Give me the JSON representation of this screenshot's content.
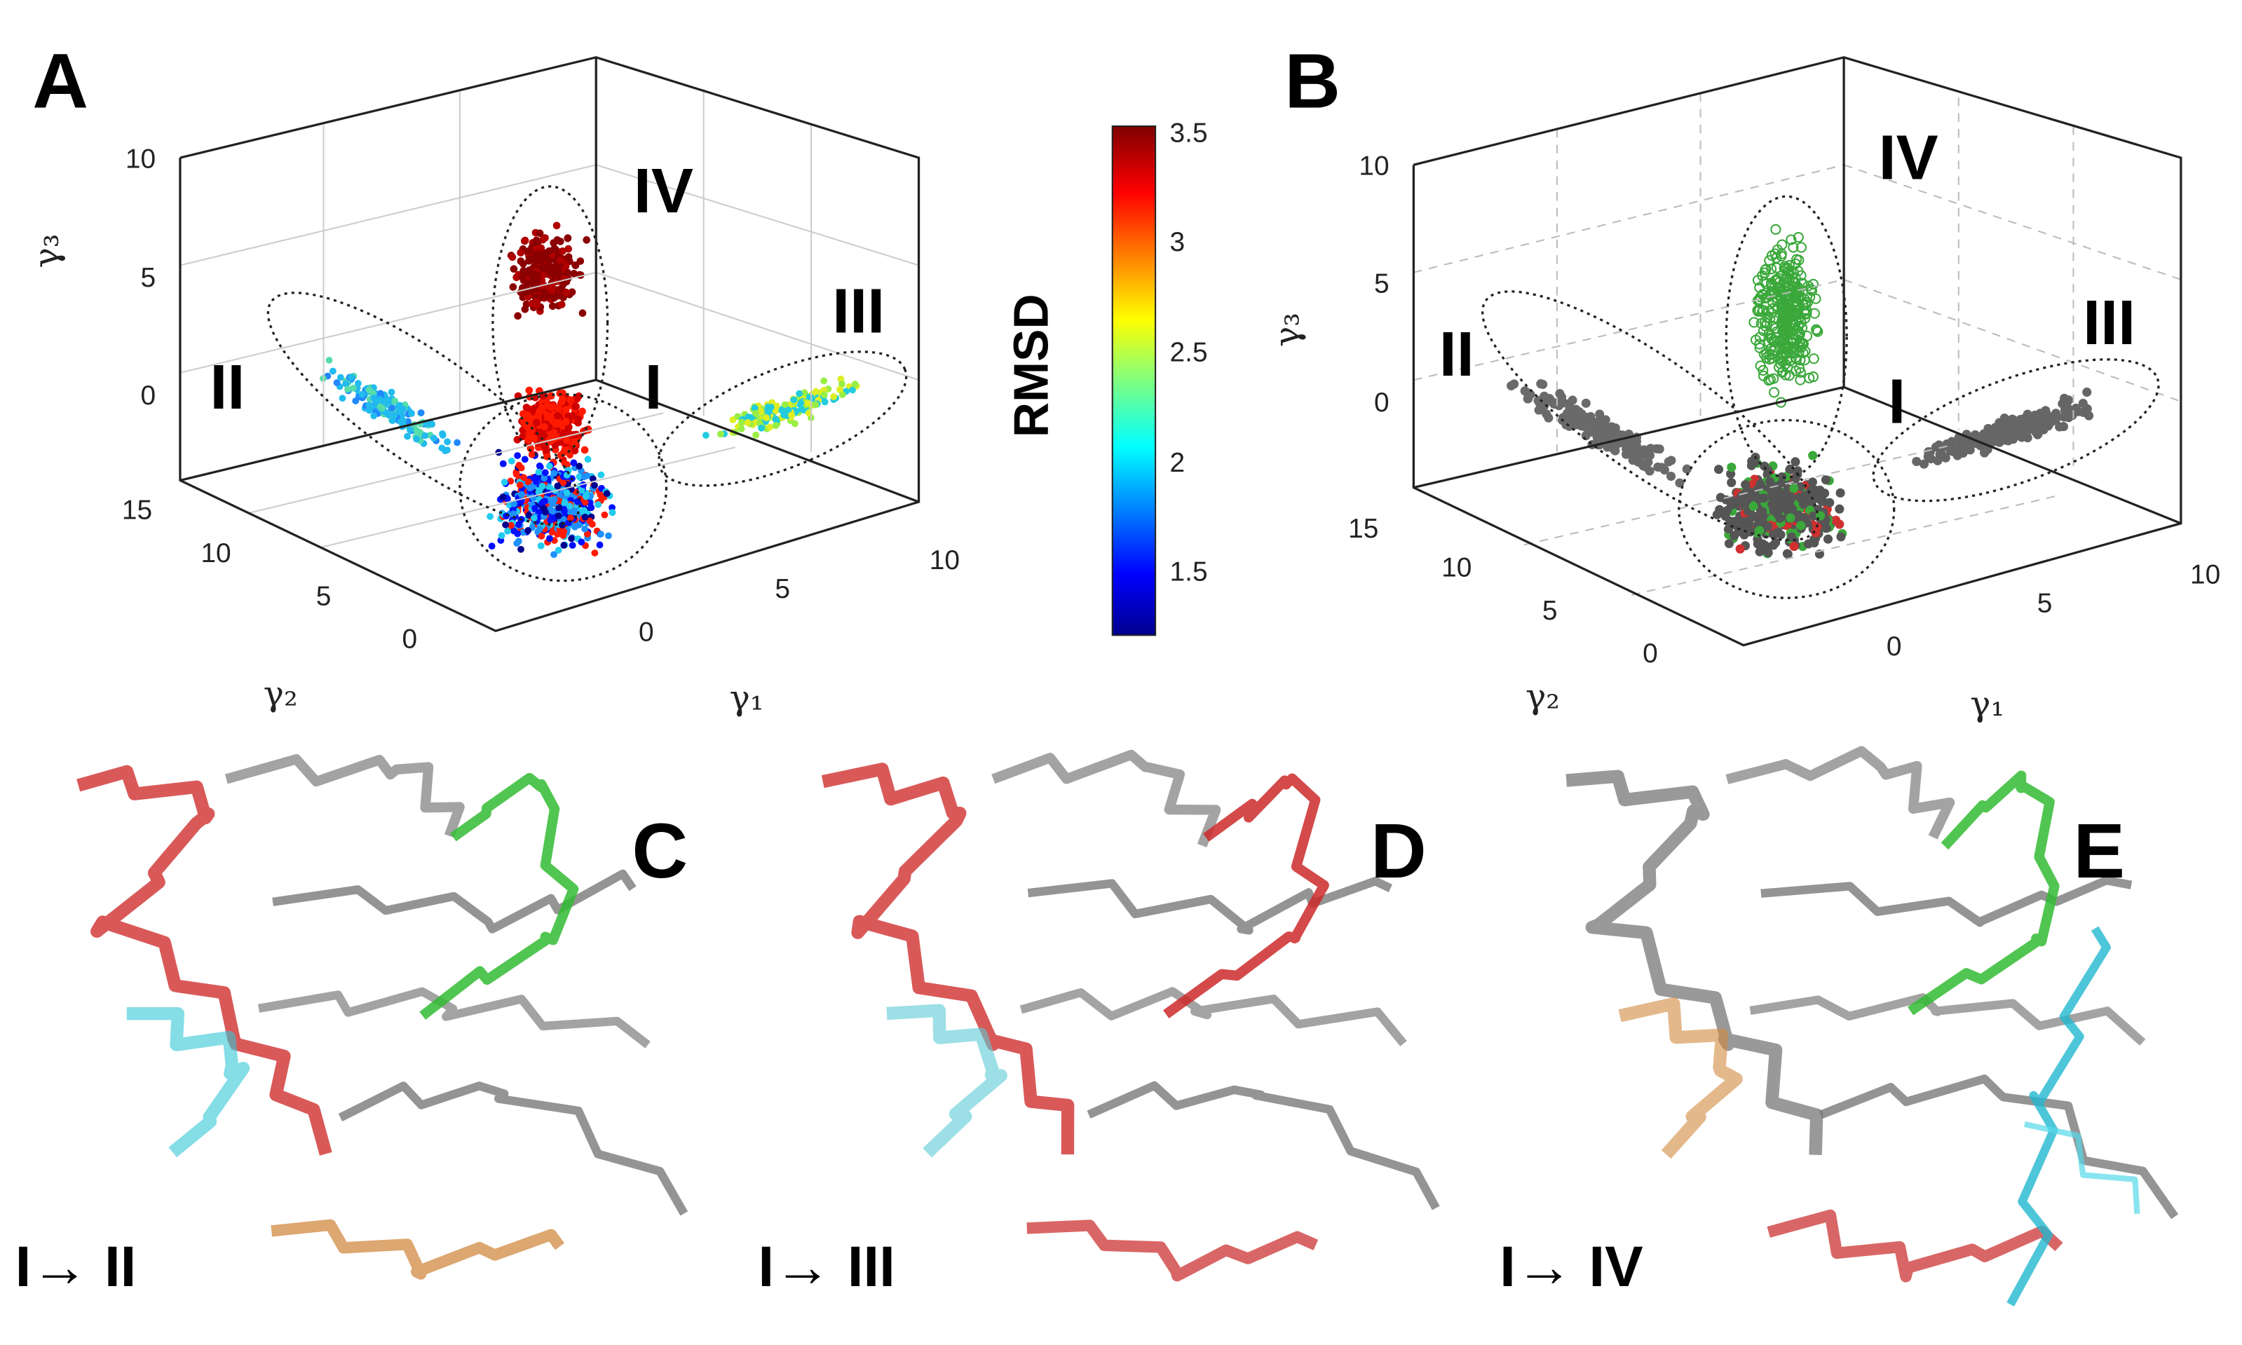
{
  "panels": [
    {
      "label": "A",
      "axes": {
        "z_label": "γ₃",
        "y_label": "γ₂",
        "x_label": "γ₁",
        "z_ticks": [
          "10",
          "5",
          "0"
        ],
        "y_ticks": [
          "15",
          "10",
          "5",
          "0"
        ],
        "x_ticks": [
          "0",
          "5",
          "10"
        ]
      },
      "regions": [
        "IV",
        "II",
        "III",
        "I"
      ],
      "colorbar": {
        "title": "RMSD",
        "ticks": [
          "3.5",
          "3",
          "2.5",
          "2",
          "1.5"
        ]
      }
    },
    {
      "label": "B",
      "axes": {
        "z_label": "γ₃",
        "y_label": "γ₂",
        "x_label": "γ₁",
        "z_ticks": [
          "10",
          "5",
          "0"
        ],
        "y_ticks": [
          "15",
          "10",
          "5",
          "0"
        ],
        "x_ticks": [
          "0",
          "5",
          "10"
        ]
      },
      "regions": [
        "IV",
        "II",
        "III",
        "I"
      ]
    },
    {
      "label": "C",
      "transition": "I→ II"
    },
    {
      "label": "D",
      "transition": "I→ III"
    },
    {
      "label": "E",
      "transition": "I→ IV"
    }
  ]
}
